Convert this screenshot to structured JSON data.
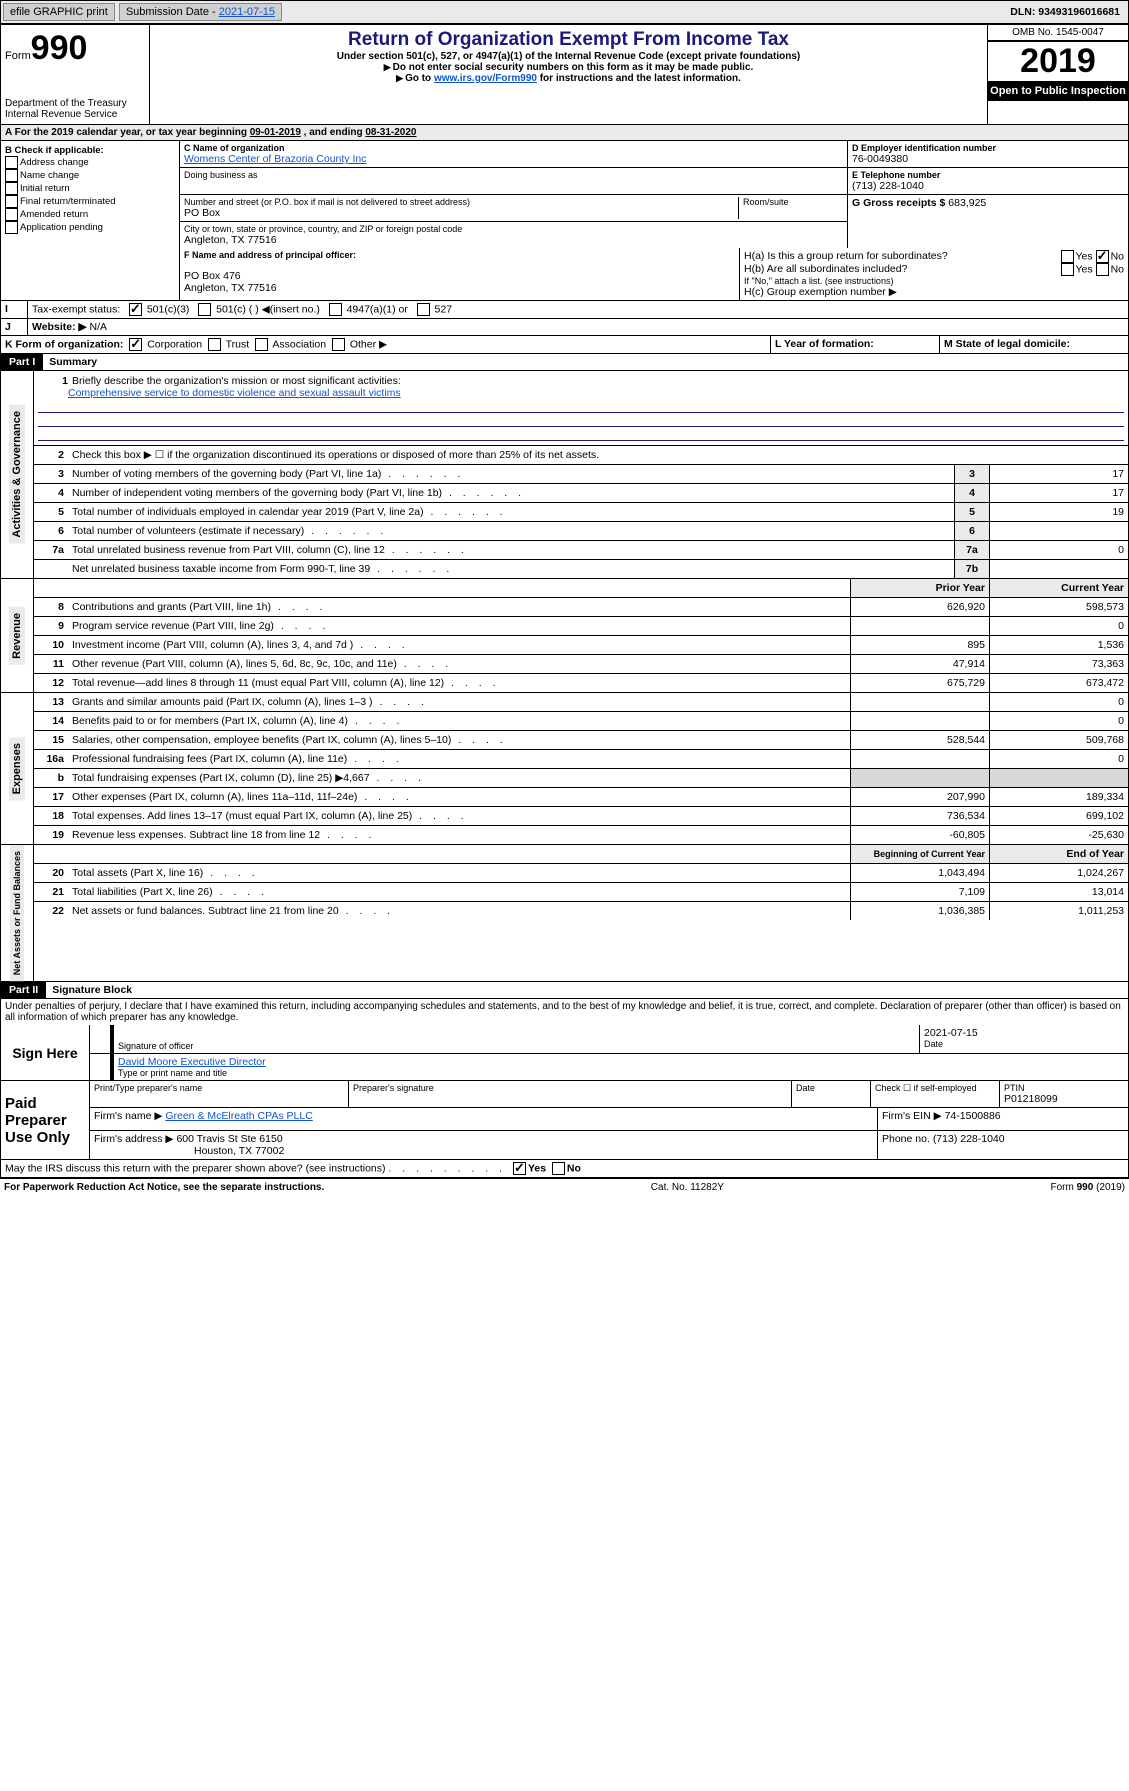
{
  "topbar": {
    "efile": "efile GRAPHIC print",
    "sub_label": "Submission Date - ",
    "sub_date": "2021-07-15",
    "dln_label": "DLN: ",
    "dln": "93493196016681"
  },
  "header": {
    "form_word": "Form",
    "form_num": "990",
    "dept": "Department of the Treasury\nInternal Revenue Service",
    "title": "Return of Organization Exempt From Income Tax",
    "sub1": "Under section 501(c), 527, or 4947(a)(1) of the Internal Revenue Code (except private foundations)",
    "sub2": "Do not enter social security numbers on this form as it may be made public.",
    "sub3_pre": "Go to ",
    "sub3_link": "www.irs.gov/Form990",
    "sub3_post": " for instructions and the latest information.",
    "omb": "OMB No. 1545-0047",
    "year": "2019",
    "open": "Open to Public Inspection"
  },
  "period": {
    "label_a": "A For the 2019 calendar year, or tax year beginning ",
    "begin": "09-01-2019",
    "mid": ", and ending ",
    "end": "08-31-2020"
  },
  "boxB": {
    "title": "B Check if applicable:",
    "o1": "Address change",
    "o2": "Name change",
    "o3": "Initial return",
    "o4": "Final return/terminated",
    "o5": "Amended return",
    "o6": "Application pending"
  },
  "boxC": {
    "name_lbl": "C Name of organization",
    "name": "Womens Center of Brazoria County Inc",
    "dba_lbl": "Doing business as",
    "addr_lbl": "Number and street (or P.O. box if mail is not delivered to street address)",
    "room_lbl": "Room/suite",
    "addr": "PO Box",
    "city_lbl": "City or town, state or province, country, and ZIP or foreign postal code",
    "city": "Angleton, TX  77516"
  },
  "boxD": {
    "ein_lbl": "D Employer identification number",
    "ein": "76-0049380",
    "tel_lbl": "E Telephone number",
    "tel": "(713) 228-1040",
    "gross_lbl": "G Gross receipts $ ",
    "gross": "683,925"
  },
  "boxF": {
    "lbl": "F Name and address of principal officer:",
    "l1": "PO Box 476",
    "l2": "Angleton, TX  77516"
  },
  "boxH": {
    "ha": "H(a)  Is this a group return for subordinates?",
    "hb": "H(b)  Are all subordinates included?",
    "hb_note": "If \"No,\" attach a list. (see instructions)",
    "hc": "H(c)  Group exemption number ▶",
    "yes": "Yes",
    "no": "No"
  },
  "boxI": {
    "lbl": "Tax-exempt status:",
    "o1": "501(c)(3)",
    "o2": "501(c) (   ) ◀(insert no.)",
    "o3": "4947(a)(1) or",
    "o4": "527"
  },
  "boxJ": {
    "lbl": "Website: ▶",
    "val": "N/A"
  },
  "boxK": {
    "lbl": "K Form of organization:",
    "o1": "Corporation",
    "o2": "Trust",
    "o3": "Association",
    "o4": "Other ▶"
  },
  "boxL": {
    "lbl": "L Year of formation:"
  },
  "boxM": {
    "lbl": "M State of legal domicile:"
  },
  "part1": {
    "hdr": "Part I",
    "title": "Summary",
    "l1": "Briefly describe the organization's mission or most significant activities:",
    "l1v": "Comprehensive service to domestic violence and sexual assault victims",
    "l2": "Check this box ▶ ☐ if the organization discontinued its operations or disposed of more than 25% of its net assets.",
    "vert_ag": "Activities & Governance",
    "vert_rev": "Revenue",
    "vert_exp": "Expenses",
    "vert_net": "Net Assets or Fund Balances",
    "rows_ag": [
      {
        "n": "3",
        "t": "Number of voting members of the governing body (Part VI, line 1a)",
        "b": "3",
        "v": "17"
      },
      {
        "n": "4",
        "t": "Number of independent voting members of the governing body (Part VI, line 1b)",
        "b": "4",
        "v": "17"
      },
      {
        "n": "5",
        "t": "Total number of individuals employed in calendar year 2019 (Part V, line 2a)",
        "b": "5",
        "v": "19"
      },
      {
        "n": "6",
        "t": "Total number of volunteers (estimate if necessary)",
        "b": "6",
        "v": ""
      },
      {
        "n": "7a",
        "t": "Total unrelated business revenue from Part VIII, column (C), line 12",
        "b": "7a",
        "v": "0"
      },
      {
        "n": "",
        "t": "Net unrelated business taxable income from Form 990-T, line 39",
        "b": "7b",
        "v": ""
      }
    ],
    "col_py": "Prior Year",
    "col_cy": "Current Year",
    "rows_rev": [
      {
        "n": "8",
        "t": "Contributions and grants (Part VIII, line 1h)",
        "py": "626,920",
        "cy": "598,573"
      },
      {
        "n": "9",
        "t": "Program service revenue (Part VIII, line 2g)",
        "py": "",
        "cy": "0"
      },
      {
        "n": "10",
        "t": "Investment income (Part VIII, column (A), lines 3, 4, and 7d )",
        "py": "895",
        "cy": "1,536"
      },
      {
        "n": "11",
        "t": "Other revenue (Part VIII, column (A), lines 5, 6d, 8c, 9c, 10c, and 11e)",
        "py": "47,914",
        "cy": "73,363"
      },
      {
        "n": "12",
        "t": "Total revenue—add lines 8 through 11 (must equal Part VIII, column (A), line 12)",
        "py": "675,729",
        "cy": "673,472"
      }
    ],
    "rows_exp": [
      {
        "n": "13",
        "t": "Grants and similar amounts paid (Part IX, column (A), lines 1–3 )",
        "py": "",
        "cy": "0"
      },
      {
        "n": "14",
        "t": "Benefits paid to or for members (Part IX, column (A), line 4)",
        "py": "",
        "cy": "0"
      },
      {
        "n": "15",
        "t": "Salaries, other compensation, employee benefits (Part IX, column (A), lines 5–10)",
        "py": "528,544",
        "cy": "509,768"
      },
      {
        "n": "16a",
        "t": "Professional fundraising fees (Part IX, column (A), line 11e)",
        "py": "",
        "cy": "0"
      },
      {
        "n": "b",
        "t": "Total fundraising expenses (Part IX, column (D), line 25) ▶4,667",
        "py": "gray",
        "cy": "gray"
      },
      {
        "n": "17",
        "t": "Other expenses (Part IX, column (A), lines 11a–11d, 11f–24e)",
        "py": "207,990",
        "cy": "189,334"
      },
      {
        "n": "18",
        "t": "Total expenses. Add lines 13–17 (must equal Part IX, column (A), line 25)",
        "py": "736,534",
        "cy": "699,102"
      },
      {
        "n": "19",
        "t": "Revenue less expenses. Subtract line 18 from line 12",
        "py": "-60,805",
        "cy": "-25,630"
      }
    ],
    "col_by": "Beginning of Current Year",
    "col_ey": "End of Year",
    "rows_net": [
      {
        "n": "20",
        "t": "Total assets (Part X, line 16)",
        "py": "1,043,494",
        "cy": "1,024,267"
      },
      {
        "n": "21",
        "t": "Total liabilities (Part X, line 26)",
        "py": "7,109",
        "cy": "13,014"
      },
      {
        "n": "22",
        "t": "Net assets or fund balances. Subtract line 21 from line 20",
        "py": "1,036,385",
        "cy": "1,011,253"
      }
    ]
  },
  "part2": {
    "hdr": "Part II",
    "title": "Signature Block",
    "decl": "Under penalties of perjury, I declare that I have examined this return, including accompanying schedules and statements, and to the best of my knowledge and belief, it is true, correct, and complete. Declaration of preparer (other than officer) is based on all information of which preparer has any knowledge."
  },
  "sign": {
    "here": "Sign Here",
    "sig_lbl": "Signature of officer",
    "date_lbl": "Date",
    "date": "2021-07-15",
    "name": "David Moore  Executive Director",
    "name_lbl": "Type or print name and title"
  },
  "paid": {
    "here": "Paid Preparer Use Only",
    "pname_lbl": "Print/Type preparer's name",
    "psig_lbl": "Preparer's signature",
    "pdate_lbl": "Date",
    "pself_lbl": "Check ☐ if self-employed",
    "ptin_lbl": "PTIN",
    "ptin": "P01218099",
    "firm_lbl": "Firm's name     ▶",
    "firm": "Green & McElreath CPAs PLLC",
    "ein_lbl": "Firm's EIN ▶",
    "ein": "74-1500886",
    "addr_lbl": "Firm's address ▶",
    "addr1": "600 Travis St Ste 6150",
    "addr2": "Houston, TX  77002",
    "phone_lbl": "Phone no.",
    "phone": "(713) 228-1040"
  },
  "discuss": {
    "q": "May the IRS discuss this return with the preparer shown above? (see instructions)",
    "yes": "Yes",
    "no": "No"
  },
  "footer": {
    "l": "For Paperwork Reduction Act Notice, see the separate instructions.",
    "c": "Cat. No. 11282Y",
    "r": "Form 990 (2019)"
  }
}
